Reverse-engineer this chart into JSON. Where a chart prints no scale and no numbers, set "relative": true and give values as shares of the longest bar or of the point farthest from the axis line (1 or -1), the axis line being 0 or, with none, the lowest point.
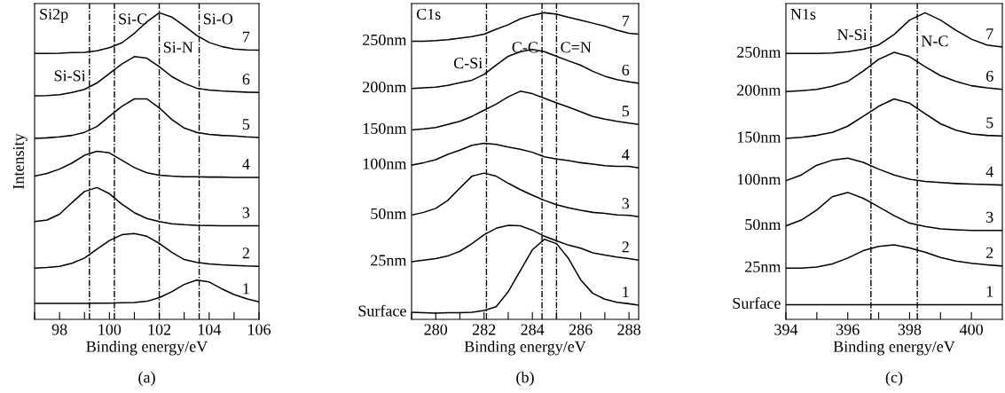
{
  "chart_data": [
    {
      "type": "line",
      "title": "Si2p",
      "xlabel": "Binding energy/eV",
      "ylabel": "Intensity",
      "relative": true,
      "tick_labels": "x",
      "xlim": [
        97,
        106
      ],
      "xticks": [
        {
          "value": 97,
          "label": null
        },
        98,
        {
          "value": 99,
          "label": null
        },
        100,
        {
          "value": 101,
          "label": null
        },
        102,
        {
          "value": 103,
          "label": null
        },
        104,
        {
          "value": 105,
          "label": null
        },
        106
      ],
      "x": [
        97,
        97.5,
        98,
        98.5,
        99,
        99.5,
        100,
        100.5,
        101,
        101.5,
        102,
        102.5,
        103,
        103.5,
        104,
        104.5,
        105,
        105.5,
        106
      ],
      "series": [
        {
          "name": "1",
          "color": "#000000",
          "values": [
            0.052,
            0.052,
            0.052,
            0.052,
            0.052,
            0.053,
            0.053,
            0.054,
            0.055,
            0.059,
            0.071,
            0.09,
            0.114,
            0.128,
            0.122,
            0.1,
            0.081,
            0.067,
            0.057
          ]
        },
        {
          "name": "2",
          "color": "#000000",
          "values": [
            0.167,
            0.169,
            0.173,
            0.183,
            0.2,
            0.229,
            0.257,
            0.276,
            0.28,
            0.271,
            0.248,
            0.219,
            0.195,
            0.186,
            0.181,
            0.178,
            0.176,
            0.174,
            0.173
          ]
        },
        {
          "name": "3",
          "color": "#000000",
          "values": [
            0.319,
            0.324,
            0.343,
            0.381,
            0.417,
            0.43,
            0.41,
            0.376,
            0.348,
            0.329,
            0.319,
            0.312,
            0.309,
            0.307,
            0.306,
            0.305,
            0.305,
            0.305,
            0.305
          ]
        },
        {
          "name": "4",
          "color": "#000000",
          "values": [
            0.467,
            0.476,
            0.49,
            0.51,
            0.535,
            0.548,
            0.543,
            0.519,
            0.495,
            0.478,
            0.47,
            0.467,
            0.465,
            0.465,
            0.464,
            0.464,
            0.463,
            0.463,
            0.463
          ]
        },
        {
          "name": "5",
          "color": "#000000",
          "values": [
            0.59,
            0.592,
            0.595,
            0.6,
            0.61,
            0.629,
            0.662,
            0.695,
            0.719,
            0.719,
            0.69,
            0.652,
            0.624,
            0.61,
            0.603,
            0.6,
            0.598,
            0.595,
            0.593
          ]
        },
        {
          "name": "6",
          "color": "#000000",
          "values": [
            0.729,
            0.73,
            0.733,
            0.74,
            0.75,
            0.771,
            0.802,
            0.833,
            0.857,
            0.852,
            0.824,
            0.792,
            0.77,
            0.754,
            0.748,
            0.745,
            0.743,
            0.741,
            0.74
          ]
        },
        {
          "name": "7",
          "color": "#000000",
          "values": [
            0.867,
            0.867,
            0.868,
            0.87,
            0.871,
            0.876,
            0.886,
            0.902,
            0.933,
            0.97,
            1.0,
            0.986,
            0.957,
            0.926,
            0.903,
            0.89,
            0.882,
            0.879,
            0.878
          ]
        }
      ],
      "ref_lines": [
        {
          "axis": "x",
          "value": 99.2,
          "label": "Si-Si",
          "color": "#000000",
          "line_style": "dashed"
        },
        {
          "axis": "x",
          "value": 100.2,
          "label": "Si-C",
          "color": "#000000",
          "line_style": "dashed"
        },
        {
          "axis": "x",
          "value": 102.0,
          "label": "Si-N",
          "color": "#000000",
          "line_style": "dashed"
        },
        {
          "axis": "x",
          "value": 103.6,
          "label": "Si-O",
          "color": "#000000",
          "line_style": "dashed"
        }
      ],
      "annotations": [
        "(a)"
      ]
    },
    {
      "type": "line",
      "title": "C1s",
      "xlabel": "Binding energy/eV",
      "relative": true,
      "tick_labels": "x",
      "xlim": [
        279,
        288.4
      ],
      "xticks": [
        {
          "value": 279,
          "label": null
        },
        280,
        {
          "value": 281,
          "label": null
        },
        282,
        {
          "value": 283,
          "label": null
        },
        284,
        {
          "value": 285,
          "label": null
        },
        286,
        {
          "value": 287,
          "label": null
        },
        288
      ],
      "x": [
        279,
        279.5,
        280,
        280.5,
        281,
        281.5,
        282,
        282.5,
        283,
        283.5,
        284,
        284.5,
        285,
        285.5,
        286,
        286.5,
        287,
        287.5,
        288,
        288.4
      ],
      "series": [
        {
          "name": "1",
          "color": "#000000",
          "values": [
            0.023,
            0.022,
            0.02,
            0.022,
            0.022,
            0.023,
            0.029,
            0.041,
            0.09,
            0.159,
            0.227,
            0.261,
            0.247,
            0.198,
            0.129,
            0.085,
            0.066,
            0.056,
            0.051,
            0.046
          ]
        },
        {
          "name": "2",
          "color": "#000000",
          "values": [
            0.188,
            0.193,
            0.198,
            0.207,
            0.222,
            0.247,
            0.276,
            0.297,
            0.307,
            0.305,
            0.291,
            0.271,
            0.256,
            0.242,
            0.232,
            0.217,
            0.21,
            0.203,
            0.198,
            0.193
          ]
        },
        {
          "name": "3",
          "color": "#000000",
          "values": [
            0.34,
            0.349,
            0.362,
            0.388,
            0.428,
            0.467,
            0.477,
            0.467,
            0.444,
            0.423,
            0.405,
            0.388,
            0.374,
            0.364,
            0.356,
            0.349,
            0.346,
            0.341,
            0.339,
            0.335
          ]
        },
        {
          "name": "4",
          "color": "#000000",
          "values": [
            0.503,
            0.511,
            0.521,
            0.538,
            0.552,
            0.568,
            0.574,
            0.571,
            0.562,
            0.555,
            0.545,
            0.53,
            0.523,
            0.518,
            0.511,
            0.506,
            0.501,
            0.499,
            0.499,
            0.494
          ]
        },
        {
          "name": "5",
          "color": "#000000",
          "values": [
            0.618,
            0.621,
            0.626,
            0.636,
            0.646,
            0.662,
            0.682,
            0.702,
            0.726,
            0.744,
            0.736,
            0.721,
            0.706,
            0.692,
            0.677,
            0.662,
            0.653,
            0.646,
            0.64,
            0.636
          ]
        },
        {
          "name": "6",
          "color": "#000000",
          "values": [
            0.753,
            0.755,
            0.757,
            0.763,
            0.772,
            0.78,
            0.799,
            0.829,
            0.858,
            0.873,
            0.88,
            0.873,
            0.858,
            0.843,
            0.829,
            0.809,
            0.793,
            0.782,
            0.775,
            0.77
          ]
        },
        {
          "name": "7",
          "color": "#000000",
          "values": [
            0.907,
            0.907,
            0.909,
            0.912,
            0.917,
            0.922,
            0.93,
            0.946,
            0.961,
            0.98,
            0.992,
            1.0,
            0.995,
            0.985,
            0.976,
            0.966,
            0.956,
            0.943,
            0.933,
            0.93
          ]
        }
      ],
      "ref_lines": [
        {
          "axis": "x",
          "value": 282.1,
          "label": "C-Si",
          "color": "#000000",
          "line_style": "dashed"
        },
        {
          "axis": "x",
          "value": 284.4,
          "label": "C-C",
          "color": "#000000",
          "line_style": "dashed"
        },
        {
          "axis": "x",
          "value": 285.0,
          "label": "C=N",
          "color": "#000000",
          "line_style": "dashed"
        }
      ],
      "annotations": [
        "250nm",
        "200nm",
        "150nm",
        "100nm",
        "50nm",
        "25nm",
        "Surface",
        "(b)"
      ]
    },
    {
      "type": "line",
      "title": "N1s",
      "xlabel": "Binding energy/eV",
      "relative": true,
      "tick_labels": "x",
      "xlim": [
        394,
        401
      ],
      "xticks": [
        394,
        {
          "value": 395,
          "label": null
        },
        396,
        {
          "value": 397,
          "label": null
        },
        398,
        {
          "value": 399,
          "label": null
        },
        400
      ],
      "x": [
        394,
        394.5,
        395,
        395.5,
        396,
        396.5,
        397,
        397.5,
        398,
        398.5,
        399,
        399.5,
        400,
        400.5,
        401
      ],
      "series": [
        {
          "name": "1",
          "color": "#000000",
          "values": [
            0.048,
            0.048,
            0.048,
            0.048,
            0.048,
            0.048,
            0.048,
            0.048,
            0.048,
            0.048,
            0.048,
            0.048,
            0.048,
            0.048,
            0.048
          ]
        },
        {
          "name": "2",
          "color": "#000000",
          "values": [
            0.167,
            0.167,
            0.171,
            0.181,
            0.2,
            0.224,
            0.238,
            0.243,
            0.233,
            0.219,
            0.202,
            0.19,
            0.183,
            0.178,
            0.174
          ]
        },
        {
          "name": "3",
          "color": "#000000",
          "values": [
            0.305,
            0.324,
            0.357,
            0.4,
            0.414,
            0.395,
            0.367,
            0.338,
            0.314,
            0.303,
            0.295,
            0.292,
            0.29,
            0.29,
            0.29
          ]
        },
        {
          "name": "4",
          "color": "#000000",
          "values": [
            0.452,
            0.471,
            0.503,
            0.519,
            0.526,
            0.512,
            0.49,
            0.471,
            0.457,
            0.45,
            0.446,
            0.443,
            0.441,
            0.44,
            0.438
          ]
        },
        {
          "name": "5",
          "color": "#000000",
          "values": [
            0.59,
            0.594,
            0.6,
            0.61,
            0.63,
            0.662,
            0.695,
            0.719,
            0.705,
            0.671,
            0.638,
            0.617,
            0.605,
            0.6,
            0.598
          ]
        },
        {
          "name": "6",
          "color": "#000000",
          "values": [
            0.743,
            0.746,
            0.75,
            0.76,
            0.776,
            0.81,
            0.848,
            0.871,
            0.857,
            0.824,
            0.795,
            0.776,
            0.762,
            0.755,
            0.75
          ]
        },
        {
          "name": "7",
          "color": "#000000",
          "values": [
            0.867,
            0.867,
            0.867,
            0.869,
            0.873,
            0.881,
            0.895,
            0.929,
            0.976,
            1.0,
            0.976,
            0.943,
            0.914,
            0.895,
            0.888
          ]
        }
      ],
      "ref_lines": [
        {
          "axis": "x",
          "value": 396.75,
          "label": "N-Si",
          "color": "#000000",
          "line_style": "dashed"
        },
        {
          "axis": "x",
          "value": 398.25,
          "label": "N-C",
          "color": "#000000",
          "line_style": "dashed"
        }
      ],
      "annotations": [
        "250nm",
        "200nm",
        "150nm",
        "100nm",
        "50nm",
        "25nm",
        "Surface",
        "(c)"
      ]
    }
  ]
}
